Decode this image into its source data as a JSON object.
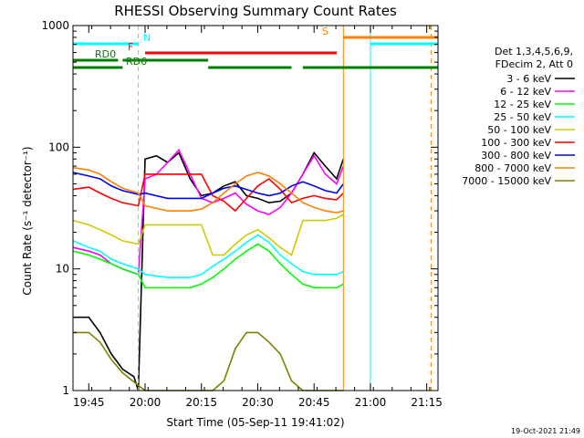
{
  "chart_data": {
    "type": "line",
    "title": "RHESSI Observing Summary Count Rates",
    "xlabel": "Start Time (05-Sep-11 19:41:02)",
    "ylabel": "Count Rate (s⁻¹ detector⁻¹)",
    "yscale": "log",
    "ylim": [
      1,
      1000
    ],
    "xlim_minutes": [
      19.68,
      21.3
    ],
    "y_tick_labels": [
      "1",
      "10",
      "100",
      "1000"
    ],
    "y_tick_values": [
      1,
      10,
      100,
      1000
    ],
    "x_tick_labels": [
      "19:45",
      "20:00",
      "20:15",
      "20:30",
      "20:45",
      "21:00",
      "21:15"
    ],
    "x_tick_values": [
      19.75,
      20.0,
      20.25,
      20.5,
      20.75,
      21.0,
      21.25
    ],
    "legend_header": [
      "Det 1,3,4,5,6,9,",
      "FDecim 2, Att 0"
    ],
    "legend_position": "right",
    "series": [
      {
        "name": "3 - 6 keV",
        "color": "#000000",
        "points": [
          [
            19.68,
            4
          ],
          [
            19.75,
            4
          ],
          [
            19.8,
            3
          ],
          [
            19.85,
            2
          ],
          [
            19.9,
            1.5
          ],
          [
            19.95,
            1.3
          ],
          [
            19.97,
            1
          ],
          [
            20.0,
            80
          ],
          [
            20.05,
            85
          ],
          [
            20.1,
            75
          ],
          [
            20.15,
            90
          ],
          [
            20.2,
            55
          ],
          [
            20.25,
            40
          ],
          [
            20.3,
            42
          ],
          [
            20.35,
            48
          ],
          [
            20.4,
            52
          ],
          [
            20.45,
            40
          ],
          [
            20.5,
            38
          ],
          [
            20.55,
            35
          ],
          [
            20.6,
            36
          ],
          [
            20.65,
            42
          ],
          [
            20.7,
            60
          ],
          [
            20.75,
            90
          ],
          [
            20.8,
            70
          ],
          [
            20.85,
            55
          ],
          [
            20.88,
            80
          ]
        ]
      },
      {
        "name": "6 - 12 keV",
        "color": "#ff00ff",
        "points": [
          [
            19.68,
            15
          ],
          [
            19.75,
            14
          ],
          [
            19.8,
            13
          ],
          [
            19.85,
            11
          ],
          [
            19.9,
            10
          ],
          [
            19.97,
            9
          ],
          [
            20.0,
            55
          ],
          [
            20.05,
            60
          ],
          [
            20.1,
            75
          ],
          [
            20.15,
            95
          ],
          [
            20.2,
            60
          ],
          [
            20.25,
            38
          ],
          [
            20.3,
            35
          ],
          [
            20.35,
            38
          ],
          [
            20.4,
            42
          ],
          [
            20.45,
            34
          ],
          [
            20.5,
            30
          ],
          [
            20.55,
            28
          ],
          [
            20.6,
            32
          ],
          [
            20.65,
            42
          ],
          [
            20.7,
            60
          ],
          [
            20.75,
            85
          ],
          [
            20.8,
            60
          ],
          [
            20.85,
            50
          ],
          [
            20.88,
            70
          ]
        ]
      },
      {
        "name": "12 - 25 keV",
        "color": "#00ff00",
        "points": [
          [
            19.68,
            14
          ],
          [
            19.75,
            13
          ],
          [
            19.8,
            12
          ],
          [
            19.85,
            11
          ],
          [
            19.9,
            10
          ],
          [
            19.97,
            9
          ],
          [
            20.0,
            7
          ],
          [
            20.1,
            7
          ],
          [
            20.2,
            7
          ],
          [
            20.25,
            7.5
          ],
          [
            20.3,
            8.5
          ],
          [
            20.35,
            10
          ],
          [
            20.4,
            12
          ],
          [
            20.45,
            14
          ],
          [
            20.5,
            16
          ],
          [
            20.55,
            14
          ],
          [
            20.6,
            11
          ],
          [
            20.65,
            9
          ],
          [
            20.7,
            7.5
          ],
          [
            20.75,
            7
          ],
          [
            20.8,
            7
          ],
          [
            20.85,
            7
          ],
          [
            20.88,
            7.5
          ]
        ]
      },
      {
        "name": "25 - 50 keV",
        "color": "#00ffff",
        "points": [
          [
            19.68,
            17
          ],
          [
            19.75,
            15
          ],
          [
            19.8,
            14
          ],
          [
            19.85,
            12
          ],
          [
            19.9,
            11
          ],
          [
            19.97,
            10
          ],
          [
            20.0,
            9
          ],
          [
            20.1,
            8.5
          ],
          [
            20.2,
            8.5
          ],
          [
            20.25,
            9
          ],
          [
            20.3,
            10.5
          ],
          [
            20.35,
            12
          ],
          [
            20.4,
            14
          ],
          [
            20.45,
            16.5
          ],
          [
            20.5,
            19
          ],
          [
            20.55,
            16.5
          ],
          [
            20.6,
            13
          ],
          [
            20.65,
            11
          ],
          [
            20.7,
            9.5
          ],
          [
            20.75,
            9
          ],
          [
            20.8,
            9
          ],
          [
            20.85,
            9
          ],
          [
            20.88,
            9.5
          ]
        ]
      },
      {
        "name": "50 - 100 keV",
        "color": "#cccc00",
        "points": [
          [
            19.68,
            25
          ],
          [
            19.75,
            23
          ],
          [
            19.8,
            21
          ],
          [
            19.85,
            19
          ],
          [
            19.9,
            17
          ],
          [
            19.97,
            16
          ],
          [
            20.0,
            23
          ],
          [
            20.1,
            23
          ],
          [
            20.2,
            23
          ],
          [
            20.25,
            23
          ],
          [
            20.3,
            13
          ],
          [
            20.35,
            13
          ],
          [
            20.4,
            16
          ],
          [
            20.45,
            19
          ],
          [
            20.5,
            21
          ],
          [
            20.55,
            18
          ],
          [
            20.6,
            15
          ],
          [
            20.65,
            13
          ],
          [
            20.7,
            25
          ],
          [
            20.75,
            25
          ],
          [
            20.8,
            25
          ],
          [
            20.85,
            26
          ],
          [
            20.88,
            28
          ]
        ]
      },
      {
        "name": "100 - 300 keV",
        "color": "#ff0000",
        "points": [
          [
            19.68,
            45
          ],
          [
            19.75,
            47
          ],
          [
            19.8,
            42
          ],
          [
            19.85,
            38
          ],
          [
            19.9,
            35
          ],
          [
            19.97,
            33
          ],
          [
            20.0,
            60
          ],
          [
            20.1,
            60
          ],
          [
            20.2,
            60
          ],
          [
            20.25,
            60
          ],
          [
            20.3,
            40
          ],
          [
            20.35,
            36
          ],
          [
            20.4,
            30
          ],
          [
            20.45,
            38
          ],
          [
            20.5,
            48
          ],
          [
            20.55,
            55
          ],
          [
            20.6,
            45
          ],
          [
            20.65,
            35
          ],
          [
            20.7,
            38
          ],
          [
            20.75,
            40
          ],
          [
            20.8,
            38
          ],
          [
            20.85,
            37
          ],
          [
            20.88,
            42
          ]
        ]
      },
      {
        "name": "300 - 800 keV",
        "color": "#0000ff",
        "points": [
          [
            19.68,
            62
          ],
          [
            19.75,
            58
          ],
          [
            19.8,
            55
          ],
          [
            19.85,
            48
          ],
          [
            19.9,
            44
          ],
          [
            19.97,
            41
          ],
          [
            20.0,
            42
          ],
          [
            20.1,
            38
          ],
          [
            20.2,
            38
          ],
          [
            20.25,
            38
          ],
          [
            20.3,
            42
          ],
          [
            20.35,
            46
          ],
          [
            20.4,
            48
          ],
          [
            20.45,
            45
          ],
          [
            20.5,
            42
          ],
          [
            20.55,
            40
          ],
          [
            20.6,
            42
          ],
          [
            20.65,
            48
          ],
          [
            20.7,
            52
          ],
          [
            20.75,
            48
          ],
          [
            20.8,
            44
          ],
          [
            20.85,
            42
          ],
          [
            20.88,
            50
          ]
        ]
      },
      {
        "name": "800 - 7000 keV",
        "color": "#ff8000",
        "points": [
          [
            19.68,
            68
          ],
          [
            19.75,
            65
          ],
          [
            19.8,
            60
          ],
          [
            19.85,
            52
          ],
          [
            19.9,
            46
          ],
          [
            19.97,
            42
          ],
          [
            20.0,
            33
          ],
          [
            20.1,
            30
          ],
          [
            20.2,
            30
          ],
          [
            20.25,
            31
          ],
          [
            20.3,
            35
          ],
          [
            20.35,
            42
          ],
          [
            20.4,
            50
          ],
          [
            20.45,
            58
          ],
          [
            20.5,
            62
          ],
          [
            20.55,
            58
          ],
          [
            20.6,
            50
          ],
          [
            20.65,
            42
          ],
          [
            20.7,
            35
          ],
          [
            20.75,
            32
          ],
          [
            20.8,
            30
          ],
          [
            20.85,
            29
          ],
          [
            20.88,
            30
          ]
        ]
      },
      {
        "name": "7000 - 15000 keV",
        "color": "#808000",
        "points": [
          [
            19.68,
            3
          ],
          [
            19.75,
            3
          ],
          [
            19.8,
            2.5
          ],
          [
            19.85,
            1.8
          ],
          [
            19.9,
            1.4
          ],
          [
            19.97,
            1.1
          ],
          [
            20.0,
            1
          ],
          [
            20.1,
            1
          ],
          [
            20.2,
            1
          ],
          [
            20.25,
            1
          ],
          [
            20.3,
            1
          ],
          [
            20.35,
            1.2
          ],
          [
            20.4,
            2.2
          ],
          [
            20.45,
            3
          ],
          [
            20.5,
            3
          ],
          [
            20.55,
            2.5
          ],
          [
            20.6,
            2
          ],
          [
            20.65,
            1.2
          ],
          [
            20.7,
            1
          ],
          [
            20.75,
            1
          ],
          [
            20.8,
            1
          ],
          [
            20.85,
            1
          ],
          [
            20.88,
            1
          ]
        ]
      }
    ],
    "state_bars": [
      {
        "label": "N",
        "color": "#00ffff",
        "segments": [
          [
            19.68,
            19.97
          ],
          [
            21.0,
            21.3
          ]
        ]
      },
      {
        "label": "F",
        "color": "#ff0000",
        "segments": [
          [
            20.0,
            20.85
          ]
        ]
      },
      {
        "label": "S",
        "color": "#ff8000",
        "segments": [
          [
            20.88,
            21.3
          ]
        ]
      },
      {
        "label": "RD0",
        "color": "#008000",
        "segments": [
          [
            19.68,
            19.88
          ],
          [
            19.9,
            20.28
          ]
        ]
      },
      {
        "label": "RD6",
        "color": "#008000",
        "segments": [
          [
            19.68,
            19.9
          ],
          [
            20.28,
            20.65
          ],
          [
            20.7,
            21.3
          ]
        ]
      }
    ],
    "vertical_markers": [
      {
        "x": 19.68,
        "color": "#00ffff",
        "style": "solid"
      },
      {
        "x": 19.97,
        "color": "#00ffff",
        "style": "dashed"
      },
      {
        "x": 20.88,
        "color": "#ff8000",
        "style": "solid"
      },
      {
        "x": 21.0,
        "color": "#00ffff",
        "style": "solid"
      },
      {
        "x": 21.27,
        "color": "#ff8000",
        "style": "dashed"
      }
    ],
    "footer_date": "19-Oct-2021 21:49"
  }
}
